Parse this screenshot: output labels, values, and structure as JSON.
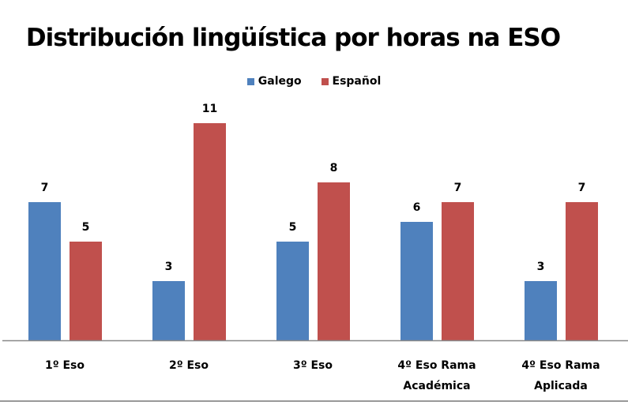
{
  "chart_data": {
    "type": "bar",
    "title": "Distribución lingüística por horas na ESO",
    "categories": [
      [
        "1º Eso"
      ],
      [
        "2º Eso"
      ],
      [
        "3º Eso"
      ],
      [
        "4º Eso Rama",
        "Académica"
      ],
      [
        "4º Eso Rama",
        "Aplicada"
      ]
    ],
    "series": [
      {
        "name": "Galego",
        "color": "#4f81bd",
        "values": [
          7,
          3,
          5,
          6,
          3
        ]
      },
      {
        "name": "Español",
        "color": "#c0504d",
        "values": [
          5,
          11,
          8,
          7,
          7
        ]
      }
    ],
    "ylim": [
      0,
      11
    ],
    "grid": false,
    "legend": "top",
    "data_labels": true,
    "xlabel": "",
    "ylabel": ""
  }
}
